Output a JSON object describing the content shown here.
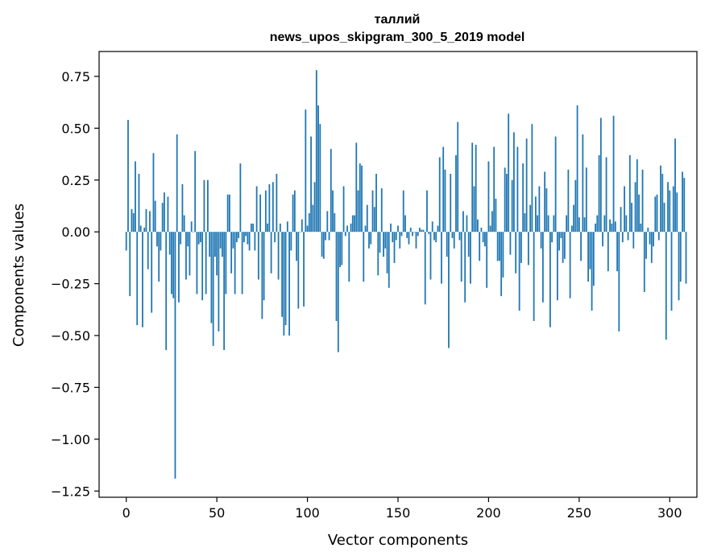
{
  "chart_data": {
    "type": "bar",
    "title": "таллий",
    "subtitle": "news_upos_skipgram_300_5_2019 model",
    "xlabel": "Vector components",
    "ylabel": "Components values",
    "xlim": [
      -15,
      315
    ],
    "ylim": [
      -1.28,
      0.87
    ],
    "xticks": [
      0,
      50,
      100,
      150,
      200,
      250,
      300
    ],
    "xtick_labels": [
      "0",
      "50",
      "100",
      "150",
      "200",
      "250",
      "300"
    ],
    "yticks": [
      0.75,
      0.5,
      0.25,
      0.0,
      -0.25,
      -0.5,
      -0.75,
      -1.0,
      -1.25
    ],
    "ytick_labels": [
      "0.75",
      "0.50",
      "0.25",
      "0.00",
      "−0.25",
      "−0.50",
      "−0.75",
      "−1.00",
      "−1.25"
    ],
    "color": "#1f77b4",
    "grid": false,
    "values": [
      -0.09,
      0.54,
      -0.31,
      0.11,
      0.09,
      0.34,
      -0.45,
      0.28,
      0.03,
      -0.46,
      0.02,
      0.11,
      -0.18,
      0.1,
      -0.39,
      0.38,
      0.15,
      -0.07,
      -0.24,
      -0.09,
      0.14,
      0.19,
      -0.57,
      0.17,
      -0.11,
      -0.3,
      -0.32,
      -1.19,
      0.47,
      -0.34,
      -0.06,
      0.23,
      0.08,
      -0.23,
      -0.07,
      -0.21,
      0.05,
      0.0,
      0.39,
      -0.3,
      -0.06,
      -0.05,
      -0.33,
      0.25,
      -0.3,
      0.25,
      -0.12,
      -0.44,
      -0.55,
      -0.12,
      -0.21,
      -0.48,
      -0.08,
      -0.12,
      -0.57,
      -0.3,
      0.18,
      0.18,
      -0.2,
      -0.08,
      -0.3,
      -0.05,
      -0.03,
      0.33,
      -0.3,
      -0.05,
      -0.02,
      -0.06,
      -0.09,
      0.04,
      0.04,
      -0.09,
      0.22,
      -0.23,
      0.18,
      -0.42,
      -0.33,
      0.2,
      0.04,
      0.23,
      -0.2,
      0.24,
      -0.05,
      0.28,
      -0.23,
      0.04,
      -0.41,
      -0.5,
      -0.45,
      0.05,
      -0.5,
      -0.09,
      0.18,
      0.2,
      -0.14,
      -0.37,
      0.0,
      0.06,
      -0.36,
      0.59,
      0.03,
      0.09,
      0.46,
      0.13,
      0.24,
      0.78,
      0.61,
      0.52,
      -0.12,
      -0.13,
      -0.04,
      0.1,
      -0.04,
      0.4,
      0.2,
      0.09,
      -0.43,
      -0.58,
      -0.17,
      -0.16,
      0.22,
      -0.02,
      0.03,
      -0.24,
      0.04,
      0.08,
      0.08,
      0.43,
      0.2,
      0.33,
      0.32,
      -0.24,
      0.03,
      0.13,
      -0.08,
      -0.06,
      0.2,
      0.12,
      0.28,
      -0.21,
      -0.1,
      0.21,
      -0.12,
      -0.08,
      -0.2,
      -0.27,
      0.04,
      -0.05,
      -0.15,
      -0.04,
      0.03,
      -0.08,
      -0.02,
      0.2,
      0.08,
      -0.03,
      -0.06,
      0.02,
      -0.02,
      0.0,
      -0.08,
      -0.02,
      0.02,
      0.01,
      0.01,
      -0.35,
      0.2,
      -0.01,
      -0.23,
      0.05,
      -0.04,
      -0.05,
      0.03,
      0.36,
      -0.25,
      0.41,
      0.3,
      -0.12,
      -0.56,
      0.28,
      -0.03,
      -0.08,
      0.37,
      0.53,
      -0.04,
      -0.24,
      0.1,
      -0.34,
      0.08,
      -0.12,
      -0.25,
      0.43,
      0.22,
      0.42,
      0.06,
      -0.14,
      0.02,
      -0.05,
      -0.07,
      -0.27,
      0.34,
      0.03,
      0.1,
      0.41,
      0.16,
      -0.14,
      -0.14,
      -0.31,
      -0.22,
      0.31,
      0.28,
      0.57,
      -0.11,
      0.25,
      0.48,
      -0.2,
      0.41,
      -0.38,
      -0.15,
      0.33,
      0.09,
      0.45,
      -0.16,
      0.13,
      0.52,
      -0.43,
      0.17,
      0.08,
      0.22,
      -0.08,
      -0.34,
      0.29,
      0.21,
      0.08,
      -0.46,
      -0.05,
      0.08,
      0.46,
      -0.33,
      -0.09,
      -0.03,
      -0.15,
      -0.13,
      0.08,
      0.3,
      -0.32,
      0.03,
      0.13,
      0.25,
      0.61,
      0.07,
      -0.14,
      0.47,
      0.07,
      0.31,
      -0.24,
      -0.18,
      -0.38,
      -0.26,
      0.04,
      0.08,
      0.37,
      0.55,
      -0.07,
      0.08,
      0.36,
      -0.19,
      0.06,
      0.04,
      0.56,
      0.05,
      -0.19,
      -0.48,
      0.12,
      -0.05,
      0.22,
      0.08,
      -0.04,
      0.37,
      0.14,
      -0.08,
      0.24,
      0.35,
      0.18,
      0.04,
      0.3,
      -0.29,
      -0.13,
      0.02,
      -0.06,
      -0.15,
      -0.07,
      0.17,
      0.18,
      -0.04,
      0.32,
      0.28,
      0.14,
      -0.52,
      0.24,
      0.2,
      -0.38,
      0.22,
      0.45,
      0.19,
      -0.33,
      -0.24,
      0.29,
      0.26,
      -0.25
    ]
  }
}
